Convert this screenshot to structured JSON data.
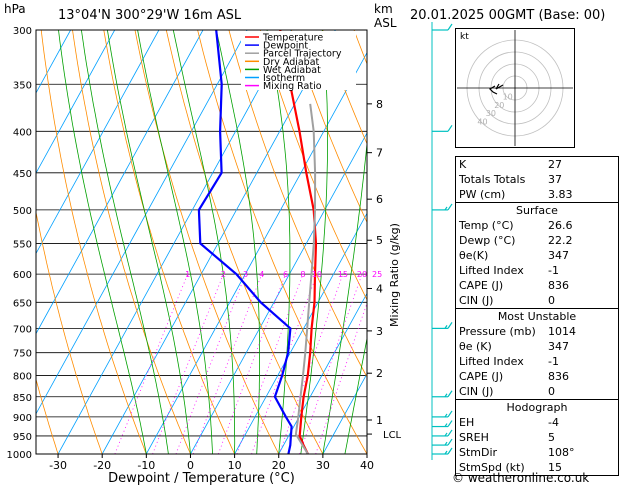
{
  "header": {
    "pressure_unit": "hPa",
    "location": "13°04'N  300°29'W  16m  ASL",
    "height_unit_line1": "km",
    "height_unit_line2": "ASL",
    "valid": "20.01.2025  00GMT  (Base: 00)"
  },
  "footer": {
    "copyright": "© weatheronline.co.uk"
  },
  "legend": [
    {
      "label": "Temperature",
      "color": "#ff0000"
    },
    {
      "label": "Dewpoint",
      "color": "#0000ff"
    },
    {
      "label": "Parcel Trajectory",
      "color": "#a0a0a0"
    },
    {
      "label": "Dry Adiabat",
      "color": "#ff8c00"
    },
    {
      "label": "Wet Adiabat",
      "color": "#00a000"
    },
    {
      "label": "Isotherm",
      "color": "#00a0ff"
    },
    {
      "label": "Mixing Ratio",
      "color": "#ff00ff"
    }
  ],
  "chart_data": {
    "type": "line",
    "xlabel": "Dewpoint / Temperature (°C)",
    "ylabel_right": "Mixing Ratio (g/kg)",
    "x_ticks": [
      -30,
      -20,
      -10,
      0,
      10,
      20,
      30,
      40
    ],
    "xlim": [
      -35,
      40
    ],
    "pressure_levels": [
      300,
      350,
      400,
      450,
      500,
      550,
      600,
      650,
      700,
      750,
      800,
      850,
      900,
      950,
      1000
    ],
    "ylim": [
      1000,
      300
    ],
    "km_ticks": [
      {
        "km": "1",
        "p": 908
      },
      {
        "km": "2",
        "p": 795
      },
      {
        "km": "3",
        "p": 705
      },
      {
        "km": "4",
        "p": 625
      },
      {
        "km": "5",
        "p": 545
      },
      {
        "km": "6",
        "p": 485
      },
      {
        "km": "7",
        "p": 425
      },
      {
        "km": "8",
        "p": 370
      }
    ],
    "lcl": {
      "label": "LCL",
      "p": 945
    },
    "mixing_ratio_labels": [
      "1",
      "2",
      "3",
      "4",
      "6",
      "8",
      "10",
      "15",
      "20",
      "25"
    ],
    "mixing_ratio_values": [
      1,
      2,
      3,
      4,
      6,
      8,
      10,
      15,
      20,
      25
    ],
    "series": [
      {
        "name": "Temperature",
        "color": "#ff0000",
        "points": [
          [
            1000,
            26.6
          ],
          [
            975,
            24.5
          ],
          [
            950,
            22.5
          ],
          [
            925,
            21.5
          ],
          [
            900,
            20.5
          ],
          [
            850,
            18.5
          ],
          [
            800,
            16.8
          ],
          [
            750,
            14.5
          ],
          [
            700,
            11.8
          ],
          [
            650,
            9.2
          ],
          [
            600,
            5.8
          ],
          [
            550,
            2.2
          ],
          [
            500,
            -2.5
          ],
          [
            450,
            -8.8
          ],
          [
            400,
            -15.5
          ],
          [
            350,
            -23.5
          ],
          [
            300,
            -32.5
          ]
        ]
      },
      {
        "name": "Dewpoint",
        "color": "#0000ff",
        "points": [
          [
            1000,
            22.2
          ],
          [
            975,
            21.5
          ],
          [
            950,
            20.5
          ],
          [
            925,
            19.5
          ],
          [
            900,
            17.0
          ],
          [
            850,
            12.0
          ],
          [
            800,
            11.0
          ],
          [
            750,
            9.5
          ],
          [
            700,
            7.0
          ],
          [
            650,
            -3.0
          ],
          [
            600,
            -12.0
          ],
          [
            550,
            -24.0
          ],
          [
            500,
            -28.5
          ],
          [
            450,
            -28.0
          ],
          [
            400,
            -33.5
          ],
          [
            350,
            -39.0
          ],
          [
            300,
            -47.0
          ]
        ]
      },
      {
        "name": "Parcel Trajectory",
        "color": "#a0a0a0",
        "points": [
          [
            1000,
            26.6
          ],
          [
            945,
            21.4
          ],
          [
            900,
            19.8
          ],
          [
            850,
            17.8
          ],
          [
            800,
            15.7
          ],
          [
            750,
            13.4
          ],
          [
            700,
            10.8
          ],
          [
            650,
            8.0
          ],
          [
            600,
            5.0
          ],
          [
            550,
            1.7
          ],
          [
            500,
            -2.2
          ],
          [
            450,
            -6.8
          ],
          [
            400,
            -12.3
          ],
          [
            370,
            -16.5
          ]
        ]
      }
    ]
  },
  "wind_barbs": [
    {
      "p": 1000,
      "speed": 15
    },
    {
      "p": 975,
      "speed": 15
    },
    {
      "p": 950,
      "speed": 15
    },
    {
      "p": 925,
      "speed": 15
    },
    {
      "p": 900,
      "speed": 15
    },
    {
      "p": 850,
      "speed": 15
    },
    {
      "p": 700,
      "speed": 15
    },
    {
      "p": 500,
      "speed": 15
    },
    {
      "p": 400,
      "speed": 10
    },
    {
      "p": 300,
      "speed": 10
    }
  ],
  "hodograph": {
    "unit": "kt",
    "rings": [
      "10",
      "20",
      "30",
      "40"
    ]
  },
  "indices": {
    "general": [
      {
        "label": "K",
        "value": "27"
      },
      {
        "label": "Totals Totals",
        "value": "37"
      },
      {
        "label": "PW (cm)",
        "value": "3.83"
      }
    ],
    "surface_title": "Surface",
    "surface": [
      {
        "label": "Temp (°C)",
        "value": "26.6"
      },
      {
        "label": "Dewp (°C)",
        "value": "22.2"
      },
      {
        "label": "θe(K)",
        "value": "347"
      },
      {
        "label": "Lifted Index",
        "value": "-1"
      },
      {
        "label": "CAPE (J)",
        "value": "836"
      },
      {
        "label": "CIN (J)",
        "value": "0"
      }
    ],
    "unstable_title": "Most Unstable",
    "unstable": [
      {
        "label": "Pressure (mb)",
        "value": "1014"
      },
      {
        "label": "θe (K)",
        "value": "347"
      },
      {
        "label": "Lifted Index",
        "value": "-1"
      },
      {
        "label": "CAPE (J)",
        "value": "836"
      },
      {
        "label": "CIN (J)",
        "value": "0"
      }
    ],
    "hodo_title": "Hodograph",
    "hodo": [
      {
        "label": "EH",
        "value": "-4"
      },
      {
        "label": "SREH",
        "value": "5"
      },
      {
        "label": "StmDir",
        "value": "108°"
      },
      {
        "label": "StmSpd (kt)",
        "value": "15"
      }
    ]
  }
}
